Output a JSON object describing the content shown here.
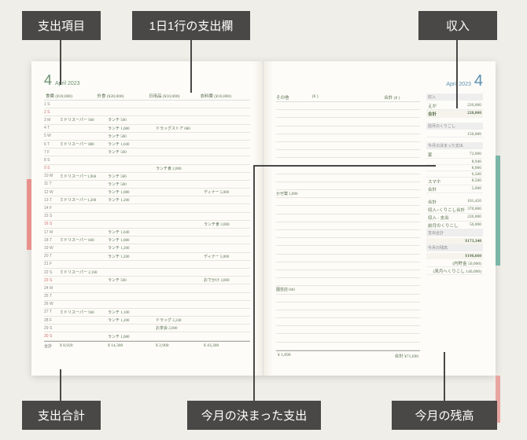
{
  "labels": {
    "expense_item": "支出項目",
    "daily_row": "1日1行の支出欄",
    "income": "収入",
    "expense_total": "支出合計",
    "fixed_expense": "今月の決まった支出",
    "balance": "今月の残高"
  },
  "colors": {
    "label_bg": "#4a4846",
    "label_fg": "#ffffff",
    "page_bg": "#fdfcf8",
    "body_bg": "#f0eee9",
    "month_l": "#6a8f70",
    "month_r": "#5b8fb0",
    "ink": "#5a7050"
  },
  "left_page": {
    "month_num": "4",
    "month_txt": "April 2023",
    "categories": [
      "食費 (¥18,000)",
      "外食 (¥20,000)",
      "日用品 (¥10,000)",
      "衣料費 (¥10,000)"
    ],
    "days": [
      {
        "d": "1 S",
        "c": [
          "",
          "",
          "",
          ""
        ]
      },
      {
        "d": "2 S",
        "c": [
          "",
          "",
          "",
          ""
        ],
        "sun": true
      },
      {
        "d": "3 M",
        "c": [
          "ミドリスーパー 940",
          "ランチ 500",
          "",
          ""
        ]
      },
      {
        "d": "4 T",
        "c": [
          "",
          "ランチ 1,080",
          "ドラッグストア 680",
          ""
        ]
      },
      {
        "d": "5 W",
        "c": [
          "",
          "ランチ 500",
          "",
          ""
        ]
      },
      {
        "d": "6 T",
        "c": [
          "ミドリスーパー 880",
          "ランチ 1,040",
          "",
          ""
        ]
      },
      {
        "d": "7 F",
        "c": [
          "",
          "ランチ 500",
          "",
          ""
        ]
      },
      {
        "d": "8 S",
        "c": [
          "",
          "",
          "",
          ""
        ]
      },
      {
        "d": "9 S",
        "c": [
          "",
          "",
          "ランチ食 2,000",
          ""
        ],
        "sun": true
      },
      {
        "d": "10 M",
        "c": [
          "ミドリスーパー1,960",
          "ランチ 500",
          "",
          ""
        ]
      },
      {
        "d": "11 T",
        "c": [
          "",
          "ランチ 500",
          "",
          ""
        ]
      },
      {
        "d": "12 W",
        "c": [
          "",
          "ランチ 1,080",
          "",
          "ディナー 5,000"
        ]
      },
      {
        "d": "13 T",
        "c": [
          "ミドリスーパー1,200",
          "ランチ 1,200",
          "",
          ""
        ]
      },
      {
        "d": "14 F",
        "c": [
          "",
          "",
          "",
          ""
        ]
      },
      {
        "d": "15 S",
        "c": [
          "",
          "",
          "",
          ""
        ]
      },
      {
        "d": "16 S",
        "c": [
          "",
          "",
          "",
          "ランチ食 3,000"
        ],
        "sun": true
      },
      {
        "d": "17 M",
        "c": [
          "",
          "ランチ 1,040",
          "",
          ""
        ]
      },
      {
        "d": "18 T",
        "c": [
          "ミドリスーパー 840",
          "ランチ 1,080",
          "",
          ""
        ]
      },
      {
        "d": "19 W",
        "c": [
          "",
          "ランチ 1,200",
          "",
          ""
        ]
      },
      {
        "d": "20 T",
        "c": [
          "",
          "ランチ 1,200",
          "",
          "ディナー 5,000"
        ]
      },
      {
        "d": "21 F",
        "c": [
          "",
          "",
          "",
          ""
        ]
      },
      {
        "d": "22 S",
        "c": [
          "ミドリスーパー 2,160",
          "",
          "",
          ""
        ]
      },
      {
        "d": "23 S",
        "c": [
          "",
          "ランチ 500",
          "",
          "おでかけ 3,000"
        ],
        "sun": true
      },
      {
        "d": "24 M",
        "c": [
          "",
          "",
          "",
          ""
        ]
      },
      {
        "d": "25 T",
        "c": [
          "",
          "",
          "",
          ""
        ]
      },
      {
        "d": "26 W",
        "c": [
          "",
          "",
          "",
          ""
        ]
      },
      {
        "d": "27 T",
        "c": [
          "ミドリスーパー 940",
          "ランチ 1,100",
          "",
          ""
        ]
      },
      {
        "d": "28 F",
        "c": [
          "",
          "ランチ 1,200",
          "ドラッグ 2,240",
          ""
        ]
      },
      {
        "d": "29 S",
        "c": [
          "",
          "",
          "お茶会 2,000",
          ""
        ]
      },
      {
        "d": "30 S",
        "c": [
          "",
          "ランチ 1,080",
          "",
          ""
        ],
        "sun": true
      }
    ],
    "totals": [
      "¥ 8,920",
      "¥ 14,300",
      "¥ 2,900",
      "¥ 43,300"
    ]
  },
  "right_page": {
    "month_num": "4",
    "month_txt": "April 2023",
    "categories": [
      "その他",
      "(¥    )",
      "",
      "合計 (¥    )"
    ],
    "days": [
      "",
      "",
      "",
      "",
      "",
      "",
      "",
      "",
      "",
      "",
      "",
      "かぜ薬 1,890",
      "",
      "",
      "",
      "",
      "",
      "",
      "",
      "",
      "",
      "",
      "",
      "園芸店 840",
      "",
      "",
      "",
      "",
      "",
      "",
      ""
    ],
    "total": "¥ 1,890",
    "grand_total": "合計 ¥71,690",
    "income": {
      "title": "収入",
      "items": [
        [
          "えが",
          "220,000"
        ]
      ],
      "total_label": "合計",
      "total": "220,000"
    },
    "carryover": {
      "title": "前月のくりこし",
      "value": "150,000"
    },
    "fixed": {
      "title": "今月の決まった支出",
      "items": [
        [
          "家",
          "72,000"
        ],
        [
          "",
          "8,940"
        ],
        [
          "",
          "8,000"
        ],
        [
          "",
          "6,500"
        ],
        [
          "スマホ",
          "8,500"
        ],
        [
          "合計",
          "5,000"
        ]
      ]
    },
    "summary": {
      "lines": [
        [
          "合計",
          "101,450"
        ],
        [
          "収入+くりこし合計",
          "370,000"
        ],
        [
          "収入 - 支出",
          "220,000"
        ],
        [
          "前月のくりこし",
          "50,000"
        ]
      ],
      "expense_total_label": "支出合計",
      "expense_total": "¥173,340",
      "balance_label": "今月の残高",
      "balance": "¥196,660",
      "sub1": "(内貯金 50,000)",
      "sub2": "(来月へくりこし 146,000)"
    }
  }
}
